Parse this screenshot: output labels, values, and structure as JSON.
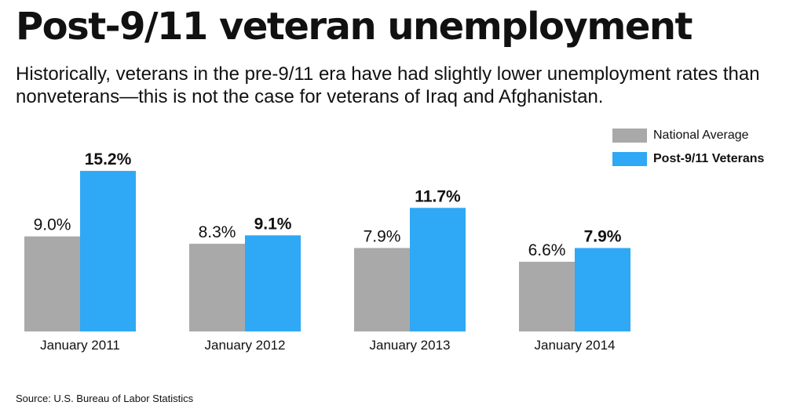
{
  "title": "Post-9/11 veteran unemployment",
  "subtitle": "Historically, veterans in the pre-9/11 era  have had slightly lower unemployment rates than nonveterans—this is not the case for veterans of Iraq and Afghanistan.",
  "source": "Source: U.S. Bureau of Labor Statistics",
  "colors": {
    "national": "#a9a9a9",
    "veterans": "#2fa8f5",
    "text": "#111111"
  },
  "chart_data": {
    "type": "bar",
    "title": "Post-9/11 veteran unemployment",
    "xlabel": "",
    "ylabel": "",
    "ylim": [
      0,
      16
    ],
    "grid": false,
    "legend_position": "top-right",
    "categories": [
      "January 2011",
      "January 2012",
      "January 2013",
      "January 2014"
    ],
    "series": [
      {
        "name": "National Average",
        "values": [
          9.0,
          8.3,
          7.9,
          6.6
        ],
        "labels": [
          "9.0%",
          "8.3%",
          "7.9%",
          "6.6%"
        ],
        "label_weight": "normal"
      },
      {
        "name": "Post-9/11 Veterans",
        "values": [
          15.2,
          9.1,
          11.7,
          7.9
        ],
        "labels": [
          "15.2%",
          "9.1%",
          "11.7%",
          "7.9%"
        ],
        "label_weight": "bold"
      }
    ]
  }
}
